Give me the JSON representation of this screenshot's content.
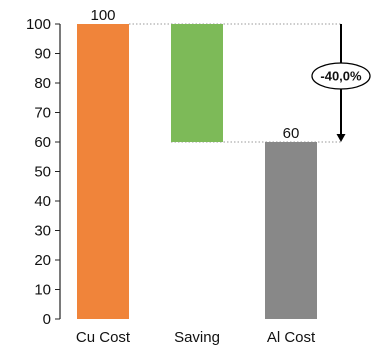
{
  "chart_data": {
    "type": "waterfall",
    "categories": [
      "Cu Cost",
      "Saving",
      "Al Cost"
    ],
    "bars": [
      {
        "category": "Cu Cost",
        "start": 0,
        "end": 100,
        "color": "#F0843A",
        "label": "100"
      },
      {
        "category": "Saving",
        "start": 60,
        "end": 100,
        "color": "#7DBA58",
        "label": ""
      },
      {
        "category": "Al Cost",
        "start": 0,
        "end": 60,
        "color": "#888888",
        "label": "60"
      }
    ],
    "yticks": [
      "0",
      "10",
      "20",
      "30",
      "40",
      "50",
      "60",
      "70",
      "80",
      "90",
      "100"
    ],
    "ylim": [
      0,
      100
    ],
    "annotation": {
      "text": "-40,0%",
      "from": 100,
      "to": 60
    }
  }
}
